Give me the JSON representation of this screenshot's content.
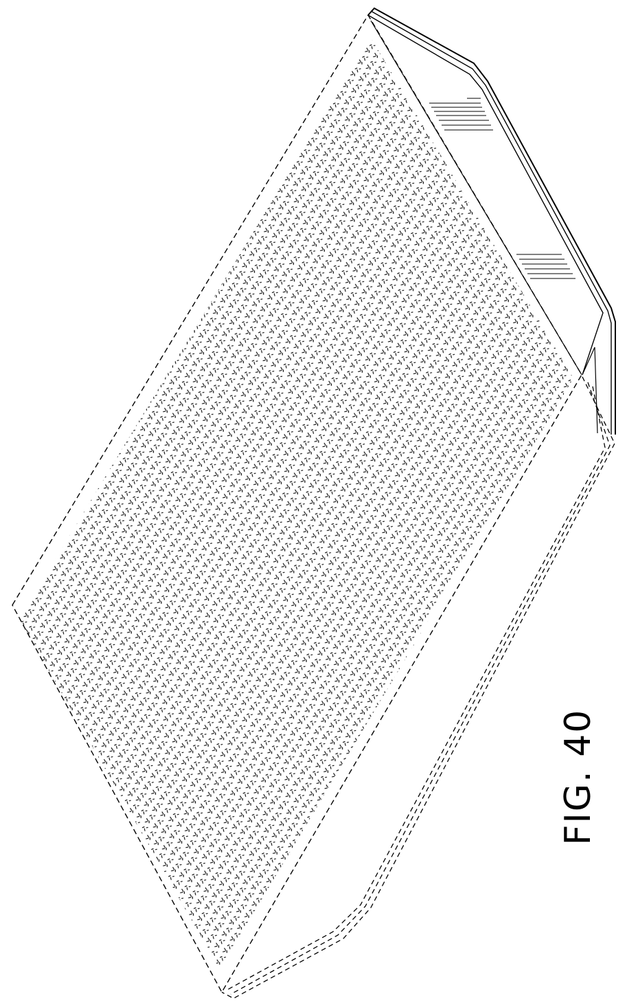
{
  "figure": {
    "label": "FIG. 40"
  },
  "colors": {
    "ink": "#000000",
    "paper": "#ffffff"
  }
}
